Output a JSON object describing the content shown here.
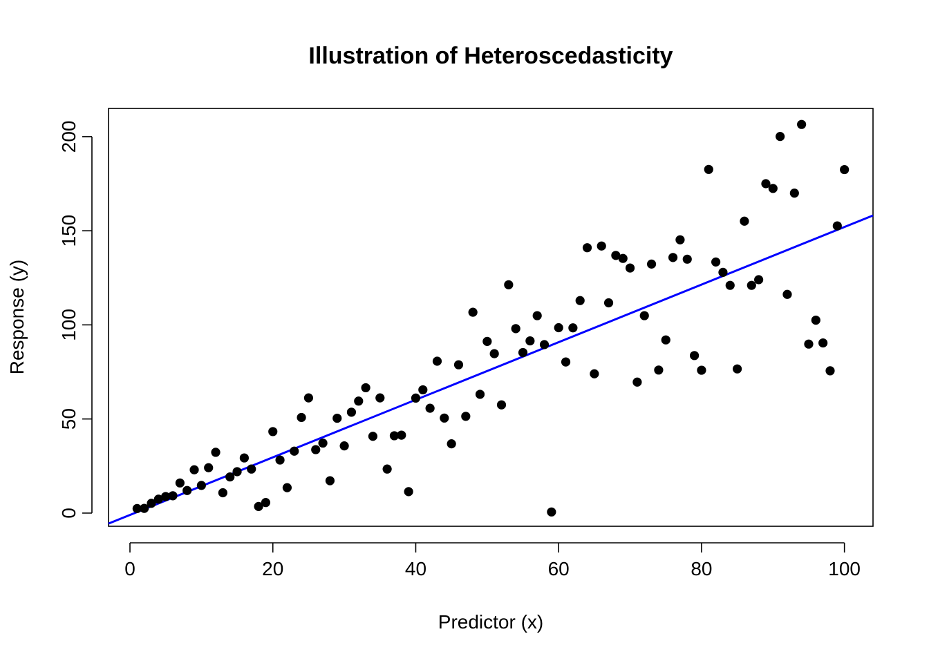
{
  "chart_data": {
    "type": "scatter",
    "title": "Illustration of Heteroscedasticity",
    "xlabel": "Predictor (x)",
    "ylabel": "Response (y)",
    "xlim": [
      -3,
      104
    ],
    "ylim": [
      -7,
      215
    ],
    "x_ticks": [
      0,
      20,
      40,
      60,
      80,
      100
    ],
    "y_ticks": [
      0,
      50,
      100,
      150,
      200
    ],
    "grid": false,
    "legend": "none",
    "point_color": "#000000",
    "fit_line_color": "#0000ff",
    "fit_line": {
      "intercept": -1.0,
      "slope": 1.53
    },
    "points": [
      [
        1,
        2.4
      ],
      [
        2,
        2.5
      ],
      [
        3,
        5.2
      ],
      [
        4,
        7.4
      ],
      [
        5,
        8.8
      ],
      [
        6,
        9.2
      ],
      [
        7,
        16.0
      ],
      [
        8,
        12.0
      ],
      [
        9,
        23.0
      ],
      [
        10,
        14.7
      ],
      [
        11,
        24.1
      ],
      [
        12,
        32.3
      ],
      [
        13,
        10.8
      ],
      [
        14,
        19.2
      ],
      [
        15,
        22.0
      ],
      [
        16,
        29.3
      ],
      [
        17,
        23.4
      ],
      [
        18,
        3.5
      ],
      [
        19,
        5.6
      ],
      [
        20,
        43.3
      ],
      [
        21,
        28.2
      ],
      [
        22,
        13.5
      ],
      [
        23,
        32.9
      ],
      [
        24,
        50.8
      ],
      [
        25,
        61.2
      ],
      [
        26,
        33.7
      ],
      [
        27,
        37.2
      ],
      [
        28,
        17.2
      ],
      [
        29,
        50.4
      ],
      [
        30,
        35.7
      ],
      [
        31,
        53.6
      ],
      [
        32,
        59.5
      ],
      [
        33,
        66.6
      ],
      [
        34,
        40.8
      ],
      [
        35,
        61.2
      ],
      [
        36,
        23.4
      ],
      [
        37,
        41.1
      ],
      [
        38,
        41.4
      ],
      [
        39,
        11.4
      ],
      [
        40,
        61.1
      ],
      [
        41,
        65.5
      ],
      [
        42,
        55.7
      ],
      [
        43,
        80.7
      ],
      [
        44,
        50.5
      ],
      [
        45,
        36.8
      ],
      [
        46,
        78.8
      ],
      [
        47,
        51.4
      ],
      [
        48,
        106.7
      ],
      [
        49,
        63.1
      ],
      [
        50,
        91.2
      ],
      [
        51,
        84.7
      ],
      [
        52,
        57.5
      ],
      [
        53,
        121.3
      ],
      [
        54,
        98.0
      ],
      [
        55,
        85.3
      ],
      [
        56,
        91.5
      ],
      [
        57,
        104.9
      ],
      [
        58,
        89.5
      ],
      [
        59,
        0.6
      ],
      [
        60,
        98.5
      ],
      [
        61,
        80.3
      ],
      [
        62,
        98.4
      ],
      [
        63,
        112.9
      ],
      [
        64,
        141.0
      ],
      [
        65,
        74.0
      ],
      [
        66,
        141.9
      ],
      [
        67,
        111.7
      ],
      [
        68,
        136.9
      ],
      [
        69,
        135.3
      ],
      [
        70,
        130.2
      ],
      [
        71,
        69.6
      ],
      [
        72,
        104.9
      ],
      [
        73,
        132.3
      ],
      [
        74,
        76.0
      ],
      [
        75,
        92.0
      ],
      [
        76,
        135.8
      ],
      [
        77,
        145.2
      ],
      [
        78,
        134.9
      ],
      [
        79,
        83.7
      ],
      [
        80,
        75.9
      ],
      [
        81,
        182.6
      ],
      [
        82,
        133.4
      ],
      [
        83,
        127.9
      ],
      [
        84,
        121.0
      ],
      [
        85,
        76.6
      ],
      [
        86,
        155.1
      ],
      [
        87,
        121.0
      ],
      [
        88,
        124.0
      ],
      [
        89,
        175.0
      ],
      [
        90,
        172.5
      ],
      [
        91,
        200.1
      ],
      [
        92,
        116.2
      ],
      [
        93,
        170.0
      ],
      [
        94,
        206.5
      ],
      [
        95,
        89.8
      ],
      [
        96,
        102.5
      ],
      [
        97,
        90.4
      ],
      [
        98,
        75.6
      ],
      [
        99,
        152.6
      ],
      [
        100,
        182.5
      ]
    ]
  }
}
